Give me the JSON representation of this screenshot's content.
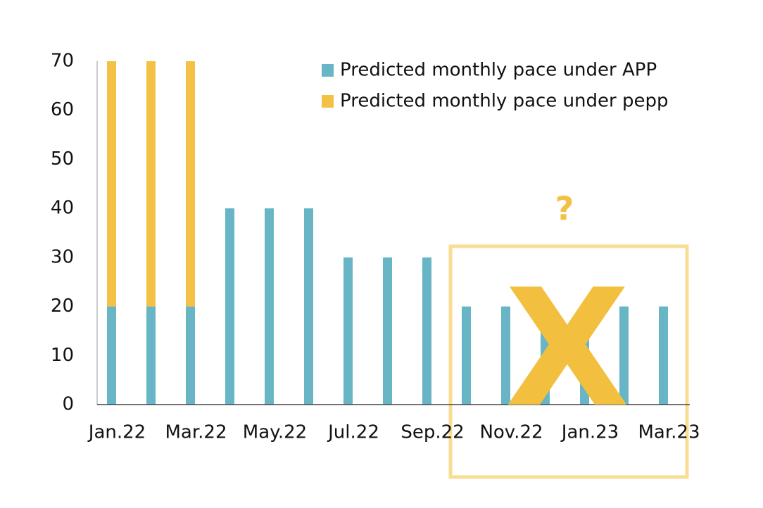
{
  "chart_data": {
    "type": "stacked_bar",
    "categories": [
      "Jan.22",
      null,
      "Mar.22",
      null,
      "May.22",
      null,
      "Jul.22",
      null,
      "Sep.22",
      null,
      "Nov.22",
      null,
      "Jan.23",
      null,
      "Mar.23"
    ],
    "series": [
      {
        "name": "Predicted monthly pace under APP",
        "color": "#68b6c5",
        "values": [
          20,
          20,
          20,
          40,
          40,
          40,
          30,
          30,
          30,
          20,
          20,
          20,
          20,
          20,
          20
        ]
      },
      {
        "name": "Predicted monthly pace under pepp",
        "color": "#f3c146",
        "values": [
          50,
          50,
          50,
          0,
          0,
          0,
          0,
          0,
          0,
          0,
          0,
          0,
          0,
          0,
          0
        ]
      }
    ],
    "ylim": [
      0,
      70
    ],
    "yticks": [
      0,
      10,
      20,
      30,
      40,
      50,
      60,
      70
    ],
    "grid": false,
    "legend": "top-right",
    "annotations": [
      "?",
      "X"
    ]
  }
}
